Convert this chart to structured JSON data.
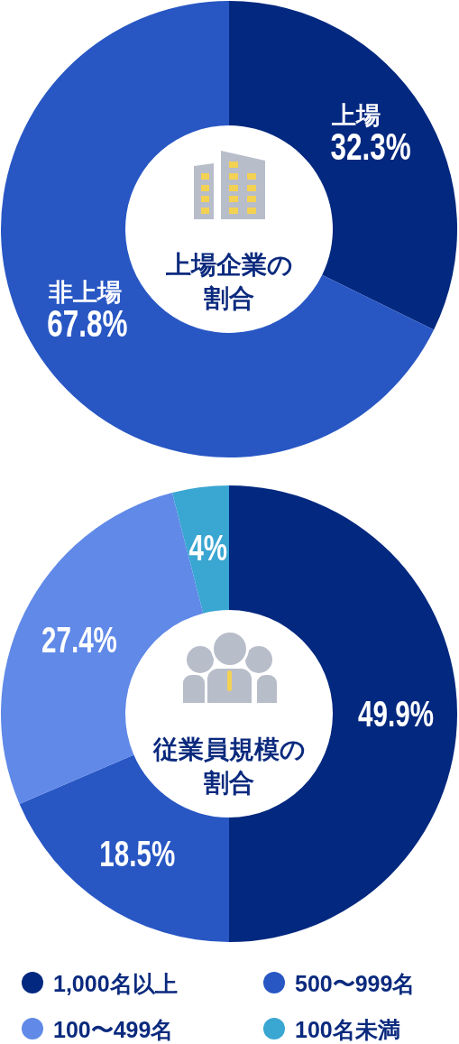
{
  "chart_data": [
    {
      "type": "donut",
      "title": "上場企業の割合",
      "categories": [
        "上場",
        "非上場"
      ],
      "values": [
        32.3,
        67.8
      ],
      "value_labels": [
        "32.3%",
        "67.8%"
      ],
      "colors": [
        "#03287f",
        "#2857c4"
      ],
      "legend": false
    },
    {
      "type": "donut",
      "title": "従業員規模の割合",
      "categories": [
        "1,000名以上",
        "500〜999名",
        "100〜499名",
        "100名未満"
      ],
      "values": [
        49.9,
        18.5,
        27.4,
        4
      ],
      "value_labels": [
        "49.9%",
        "18.5%",
        "27.4%",
        "4%"
      ],
      "colors": [
        "#03287f",
        "#2857c4",
        "#6089e8",
        "#3aa6d2"
      ],
      "legend": "bottom"
    }
  ]
}
